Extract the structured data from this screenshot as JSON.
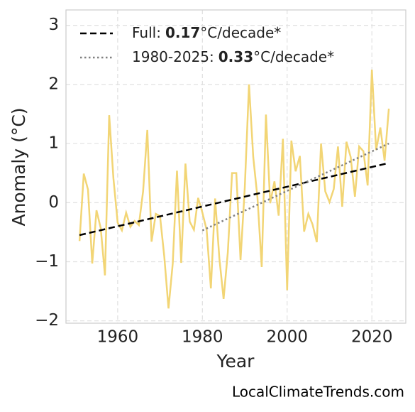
{
  "chart_data": {
    "type": "line",
    "x_label": "Year",
    "y_label": "Anomaly (°C)",
    "credit": "LocalClimateTrends.com",
    "color": "#f2d575",
    "x": [
      1951,
      1952,
      1953,
      1954,
      1955,
      1956,
      1957,
      1958,
      1959,
      1960,
      1961,
      1962,
      1963,
      1964,
      1965,
      1966,
      1967,
      1968,
      1969,
      1970,
      1971,
      1972,
      1973,
      1974,
      1975,
      1976,
      1977,
      1978,
      1979,
      1980,
      1981,
      1982,
      1983,
      1984,
      1985,
      1986,
      1987,
      1988,
      1989,
      1990,
      1991,
      1992,
      1993,
      1994,
      1995,
      1996,
      1997,
      1998,
      1999,
      2000,
      2001,
      2002,
      2003,
      2004,
      2005,
      2006,
      2007,
      2008,
      2009,
      2010,
      2011,
      2012,
      2013,
      2014,
      2015,
      2016,
      2017,
      2018,
      2019,
      2020,
      2021,
      2022,
      2023,
      2024
    ],
    "values": [
      -0.65,
      0.49,
      0.22,
      -1.03,
      -0.13,
      -0.43,
      -1.23,
      1.48,
      0.41,
      -0.34,
      -0.47,
      -0.17,
      -0.41,
      -0.31,
      -0.38,
      0.19,
      1.23,
      -0.66,
      -0.19,
      -0.23,
      -0.91,
      -1.79,
      -1.03,
      0.54,
      -1.02,
      0.66,
      -0.32,
      -0.46,
      0.08,
      -0.17,
      -0.46,
      -1.45,
      0.07,
      -0.94,
      -1.63,
      -0.84,
      0.5,
      0.5,
      -0.97,
      0.25,
      2.0,
      0.77,
      0.08,
      -1.09,
      1.49,
      -0.01,
      0.36,
      -0.22,
      1.08,
      -1.48,
      1.05,
      0.53,
      0.79,
      -0.49,
      -0.19,
      -0.37,
      -0.67,
      1.0,
      0.19,
      0.01,
      0.23,
      0.95,
      -0.07,
      1.03,
      0.77,
      0.1,
      0.95,
      0.87,
      0.29,
      2.25,
      0.89,
      1.27,
      0.71,
      1.59
    ],
    "trends": [
      {
        "name": "Full:",
        "slope": 0.17,
        "unit": "°C/decade*",
        "color": "#000000",
        "dash": "dashed",
        "x": [
          1951,
          2024
        ],
        "values": [
          -0.55,
          0.67
        ]
      },
      {
        "name": "1980-2025:",
        "slope": 0.33,
        "unit": "°C/decade*",
        "color": "#808080",
        "dash": "dotted",
        "x": [
          1980,
          2024
        ],
        "values": [
          -0.47,
          1.0
        ]
      }
    ],
    "xlim": [
      1947.8,
      2028
    ],
    "ylim": [
      -2.04,
      3.26
    ],
    "xticks": [
      1960,
      1980,
      2000,
      2020
    ],
    "yticks": [
      3,
      2,
      1,
      0,
      {
        "value": -1,
        "label": "−1"
      },
      {
        "value": -2,
        "label": "−2"
      }
    ],
    "grid": true,
    "legend": "upper left"
  }
}
